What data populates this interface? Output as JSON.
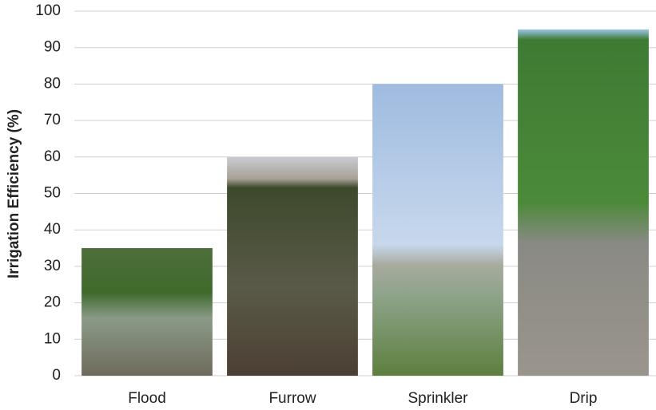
{
  "chart_data": {
    "type": "bar",
    "y_label": "Irrigation Efficiency (%)",
    "categories": [
      "Flood",
      "Furrow",
      "Sprinkler",
      "Drip"
    ],
    "values": [
      35,
      60,
      80,
      95
    ],
    "ylim": [
      0,
      100
    ],
    "yticks": [
      0,
      10,
      20,
      30,
      40,
      50,
      60,
      70,
      80,
      90,
      100
    ],
    "grid": true
  }
}
